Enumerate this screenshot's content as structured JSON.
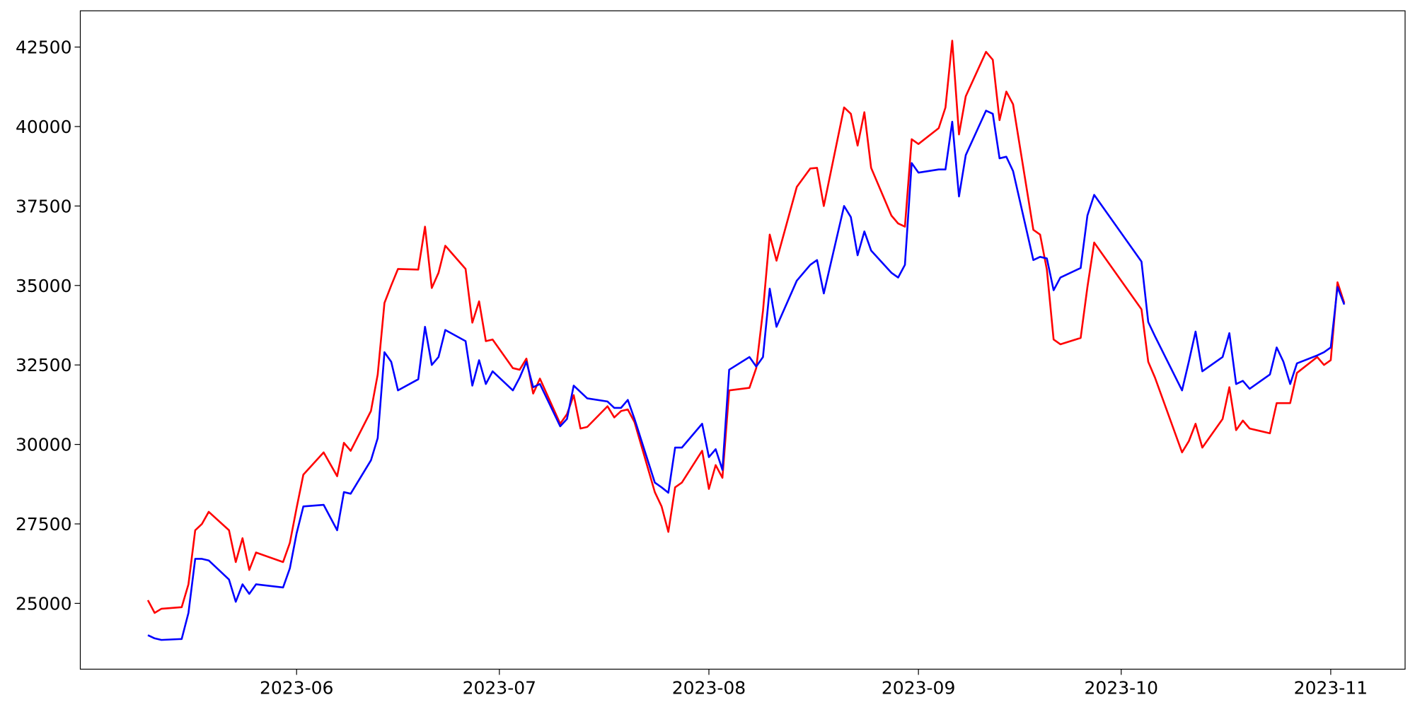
{
  "chart_data": {
    "type": "line",
    "x": [
      "2023-05-10",
      "2023-05-11",
      "2023-05-12",
      "2023-05-15",
      "2023-05-16",
      "2023-05-17",
      "2023-05-18",
      "2023-05-19",
      "2023-05-22",
      "2023-05-23",
      "2023-05-24",
      "2023-05-25",
      "2023-05-26",
      "2023-05-30",
      "2023-05-31",
      "2023-06-01",
      "2023-06-02",
      "2023-06-05",
      "2023-06-07",
      "2023-06-08",
      "2023-06-09",
      "2023-06-12",
      "2023-06-13",
      "2023-06-14",
      "2023-06-15",
      "2023-06-16",
      "2023-06-19",
      "2023-06-20",
      "2023-06-21",
      "2023-06-22",
      "2023-06-23",
      "2023-06-26",
      "2023-06-27",
      "2023-06-28",
      "2023-06-29",
      "2023-06-30",
      "2023-07-03",
      "2023-07-04",
      "2023-07-05",
      "2023-07-06",
      "2023-07-07",
      "2023-07-10",
      "2023-07-11",
      "2023-07-12",
      "2023-07-13",
      "2023-07-14",
      "2023-07-17",
      "2023-07-18",
      "2023-07-19",
      "2023-07-20",
      "2023-07-21",
      "2023-07-24",
      "2023-07-25",
      "2023-07-26",
      "2023-07-27",
      "2023-07-28",
      "2023-07-31",
      "2023-08-01",
      "2023-08-02",
      "2023-08-03",
      "2023-08-04",
      "2023-08-07",
      "2023-08-08",
      "2023-08-09",
      "2023-08-10",
      "2023-08-11",
      "2023-08-14",
      "2023-08-16",
      "2023-08-17",
      "2023-08-18",
      "2023-08-21",
      "2023-08-22",
      "2023-08-23",
      "2023-08-24",
      "2023-08-25",
      "2023-08-28",
      "2023-08-29",
      "2023-08-30",
      "2023-08-31",
      "2023-09-01",
      "2023-09-04",
      "2023-09-05",
      "2023-09-06",
      "2023-09-07",
      "2023-09-08",
      "2023-09-11",
      "2023-09-12",
      "2023-09-13",
      "2023-09-14",
      "2023-09-15",
      "2023-09-18",
      "2023-09-19",
      "2023-09-20",
      "2023-09-21",
      "2023-09-22",
      "2023-09-25",
      "2023-09-26",
      "2023-09-27",
      "2023-10-04",
      "2023-10-05",
      "2023-10-06",
      "2023-10-10",
      "2023-10-11",
      "2023-10-12",
      "2023-10-13",
      "2023-10-16",
      "2023-10-17",
      "2023-10-18",
      "2023-10-19",
      "2023-10-20",
      "2023-10-23",
      "2023-10-24",
      "2023-10-25",
      "2023-10-26",
      "2023-10-27",
      "2023-10-30",
      "2023-10-31",
      "2023-11-01",
      "2023-11-02",
      "2023-11-03"
    ],
    "series": [
      {
        "color": "#ff0000",
        "values": [
          25100,
          24700,
          24830,
          24880,
          25600,
          27300,
          27500,
          27880,
          27300,
          26300,
          27050,
          26050,
          26600,
          26300,
          26900,
          28000,
          29050,
          29750,
          29000,
          30050,
          29800,
          31050,
          32200,
          34450,
          35000,
          35520,
          35500,
          36850,
          34920,
          35400,
          36250,
          35520,
          33830,
          34500,
          33250,
          33300,
          32400,
          32350,
          32700,
          31600,
          32070,
          30650,
          30950,
          31550,
          30500,
          30550,
          31200,
          30850,
          31050,
          31100,
          30700,
          28500,
          28050,
          27250,
          28650,
          28800,
          29800,
          28600,
          29350,
          28950,
          31700,
          31780,
          32400,
          34200,
          36600,
          35780,
          38100,
          38680,
          38700,
          37500,
          40600,
          40400,
          39400,
          40450,
          38700,
          37200,
          36950,
          36850,
          39600,
          39450,
          39950,
          40600,
          42700,
          39750,
          40950,
          42350,
          42100,
          40200,
          41100,
          40700,
          36750,
          36600,
          35500,
          33300,
          33150,
          33350,
          34950,
          36350,
          34250,
          32600,
          32100,
          29750,
          30100,
          30650,
          29900,
          30800,
          31800,
          30450,
          30750,
          30500,
          30350,
          31300,
          31300,
          31300,
          32250,
          32750,
          32500,
          32650,
          35100,
          34450
        ]
      },
      {
        "color": "#0000ff",
        "values": [
          24000,
          23900,
          23850,
          23880,
          24700,
          26400,
          26400,
          26350,
          25750,
          25050,
          25600,
          25300,
          25600,
          25500,
          26100,
          27200,
          28050,
          28100,
          27300,
          28500,
          28450,
          29500,
          30200,
          32900,
          32600,
          31700,
          32050,
          33700,
          32500,
          32750,
          33600,
          33250,
          31850,
          32650,
          31900,
          32300,
          31700,
          32100,
          32600,
          31800,
          31900,
          30570,
          30800,
          31850,
          31650,
          31450,
          31350,
          31150,
          31150,
          31400,
          30800,
          28800,
          28650,
          28480,
          29900,
          29900,
          30650,
          29600,
          29850,
          29200,
          32350,
          32750,
          32450,
          32750,
          34900,
          33700,
          35150,
          35650,
          35800,
          34750,
          37500,
          37150,
          35950,
          36700,
          36100,
          35400,
          35250,
          35650,
          38850,
          38550,
          38650,
          38650,
          40150,
          37800,
          39100,
          40500,
          40400,
          39000,
          39050,
          38600,
          35800,
          35900,
          35850,
          34850,
          35250,
          35550,
          37200,
          37850,
          35750,
          33850,
          33400,
          31700,
          32600,
          33550,
          32300,
          32750,
          33500,
          31900,
          32000,
          31750,
          32200,
          33050,
          32600,
          31900,
          32550,
          32800,
          32900,
          33050,
          34950,
          34400
        ]
      }
    ],
    "xlim": [
      "2023-04-30",
      "2023-11-12"
    ],
    "xticks": [
      {
        "value": "2023-06-01",
        "label": "2023-06"
      },
      {
        "value": "2023-07-01",
        "label": "2023-07"
      },
      {
        "value": "2023-08-01",
        "label": "2023-08"
      },
      {
        "value": "2023-09-01",
        "label": "2023-09"
      },
      {
        "value": "2023-10-01",
        "label": "2023-10"
      },
      {
        "value": "2023-11-01",
        "label": "2023-11"
      }
    ],
    "ylim": [
      22930,
      43640
    ],
    "yticks": [
      25000,
      27500,
      30000,
      32500,
      35000,
      37500,
      40000,
      42500
    ],
    "grid": false
  }
}
